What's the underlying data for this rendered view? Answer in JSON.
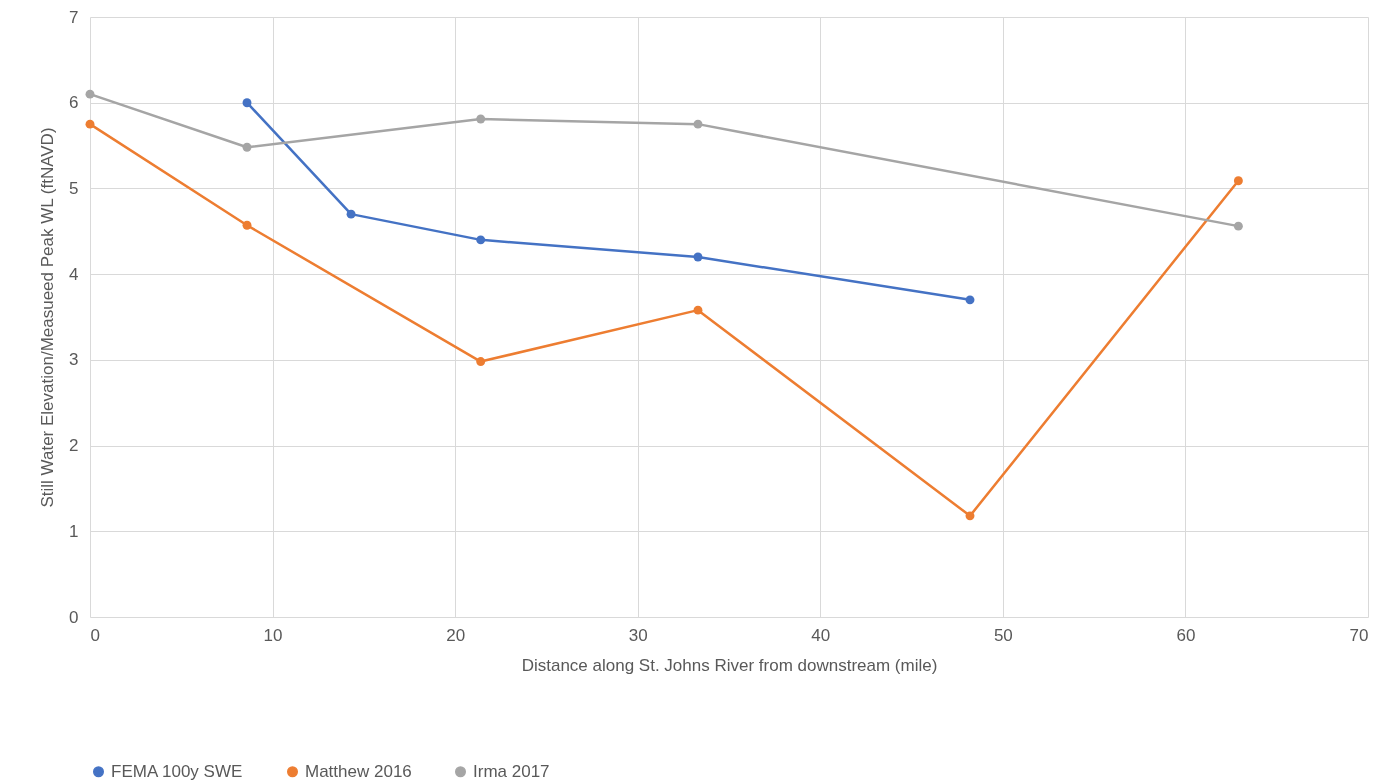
{
  "chart_data": {
    "type": "line",
    "xlabel": "Distance along St. Johns River from downstream (mile)",
    "ylabel": "Still Water Elevation/Measueed Peak WL (ftNAVD)",
    "xlim": [
      0,
      70
    ],
    "ylim": [
      0,
      7
    ],
    "xticks": [
      0,
      10,
      20,
      30,
      40,
      50,
      60,
      70
    ],
    "yticks": [
      0,
      1,
      2,
      3,
      4,
      5,
      6,
      7
    ],
    "grid": true,
    "legend": "bottom",
    "marker": "circle",
    "series": [
      {
        "name": "FEMA 100y SWE",
        "color": "#4472c4",
        "x": [
          8.6,
          14.3,
          21.4,
          33.3,
          48.2
        ],
        "values": [
          6.0,
          4.7,
          4.4,
          4.2,
          3.7
        ]
      },
      {
        "name": "Matthew 2016",
        "color": "#ed7d31",
        "x": [
          0,
          8.6,
          21.4,
          33.3,
          48.2,
          62.9
        ],
        "values": [
          5.75,
          4.57,
          2.98,
          3.58,
          1.18,
          5.09
        ]
      },
      {
        "name": "Irma 2017",
        "color": "#a5a5a5",
        "x": [
          0,
          8.6,
          21.4,
          33.3,
          62.9
        ],
        "values": [
          6.1,
          5.48,
          5.81,
          5.75,
          4.56
        ]
      }
    ]
  }
}
